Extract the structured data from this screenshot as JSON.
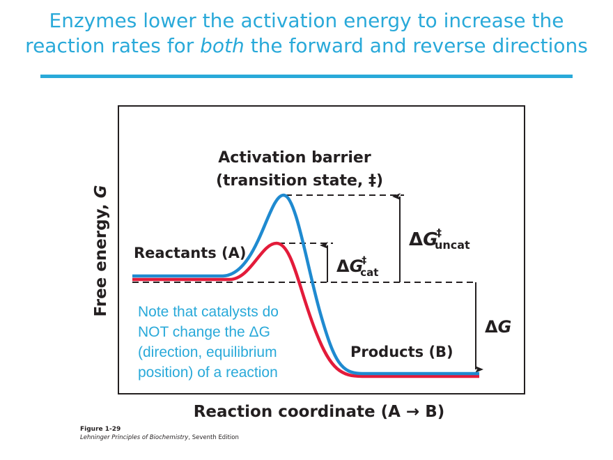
{
  "slide": {
    "title_line1": "Enzymes lower the activation energy to increase the",
    "title_line2_pre": "reaction rates for ",
    "title_line2_em": "both",
    "title_line2_post": " the forward and reverse directions",
    "accent_color": "#29a9d9"
  },
  "diagram": {
    "y_axis_label": "Free energy, ",
    "y_axis_var": "G",
    "x_axis_label": "Reaction coordinate (A → B)",
    "barrier_label_1": "Activation barrier",
    "barrier_label_2": "(transition state, ‡)",
    "reactants_label": "Reactants (A)",
    "products_label": "Products (B)",
    "dg_cat": {
      "delta": "Δ",
      "g": "G",
      "sup": "‡",
      "sub": "cat"
    },
    "dg_uncat": {
      "delta": "Δ",
      "g": "G",
      "sup": "‡",
      "sub": "uncat"
    },
    "dg": {
      "delta": "Δ",
      "g": "G"
    },
    "uncatalyzed_color": "#1f8ad0",
    "catalyzed_color": "#e31b3a",
    "note_lines": [
      "Note that catalysts do",
      "NOT change the ΔG",
      "(direction, equilibrium",
      "position) of a reaction"
    ]
  },
  "caption": {
    "figure": "Figure 1-29",
    "book_italic": "Lehninger Principles of Biochemistry",
    "edition": ", Seventh Edition"
  }
}
